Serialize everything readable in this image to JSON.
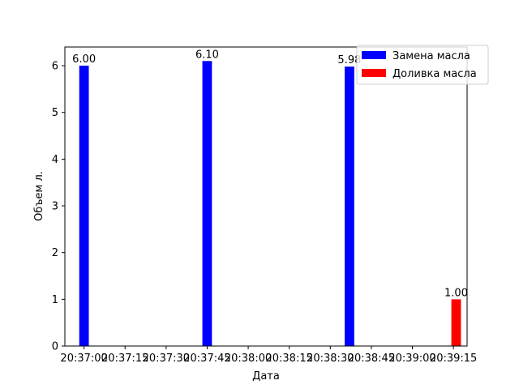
{
  "chart_data": {
    "type": "bar",
    "xlabel": "Дата",
    "ylabel": "Объем л.",
    "ylim": [
      0,
      6.4
    ],
    "yticks": [
      0,
      1,
      2,
      3,
      4,
      5,
      6
    ],
    "xticks": [
      "20:37:00",
      "20:37:15",
      "20:37:30",
      "20:37:45",
      "20:38:00",
      "20:38:15",
      "20:38:30",
      "20:38:45",
      "20:39:00",
      "20:39:15"
    ],
    "xlim": [
      "20:36:53",
      "20:39:20"
    ],
    "bar_width_seconds": 3.5,
    "series": [
      {
        "name": "Замена масла",
        "color": "#0000ff",
        "points": [
          {
            "x": "20:37:00",
            "y": 6.0,
            "label": "6.00"
          },
          {
            "x": "20:37:45",
            "y": 6.1,
            "label": "6.10"
          },
          {
            "x": "20:38:37",
            "y": 5.98,
            "label": "5.98"
          }
        ]
      },
      {
        "name": "Доливка масла",
        "color": "#ff0000",
        "points": [
          {
            "x": "20:39:16",
            "y": 1.0,
            "label": "1.00"
          }
        ]
      }
    ],
    "legend": "top-right"
  }
}
